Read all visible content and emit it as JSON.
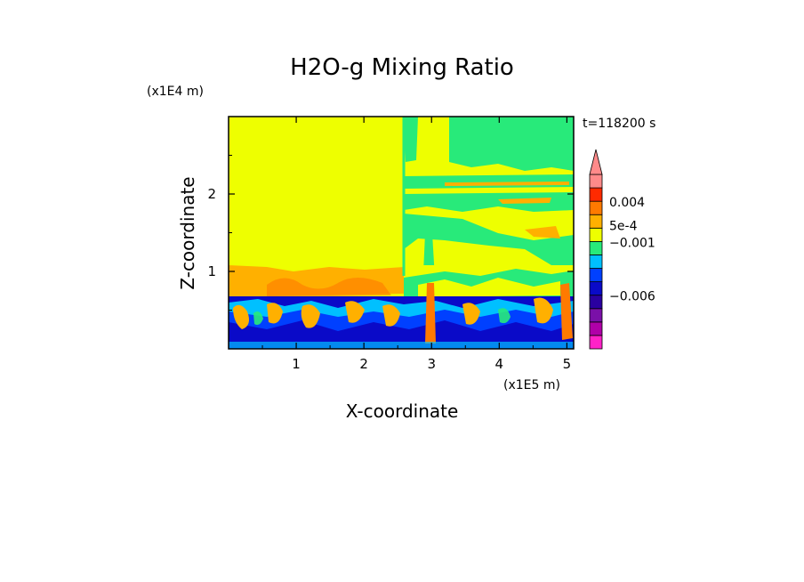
{
  "chart_data": {
    "type": "heatmap",
    "title": "H2O-g Mixing Ratio",
    "xlabel": "X-coordinate",
    "ylabel": "Z-coordinate",
    "x_unit": "(x1E5 m)",
    "y_unit": "(x1E4 m)",
    "time_label": "t=118200 s",
    "xlim": [
      0,
      5.1
    ],
    "ylim": [
      0,
      3.0
    ],
    "x_ticks": [
      "1",
      "2",
      "3",
      "4",
      "5"
    ],
    "y_ticks": [
      "1",
      "2"
    ],
    "colorbar": {
      "levels": [
        {
          "color": "#ff22c8"
        },
        {
          "color": "#b000a8"
        },
        {
          "color": "#7a10a8"
        },
        {
          "color": "#2a00a0"
        },
        {
          "color": "#0a0ac8"
        },
        {
          "color": "#0040ff"
        },
        {
          "color": "#00c0ff"
        },
        {
          "color": "#28ea7a"
        },
        {
          "color": "#eeff00"
        },
        {
          "color": "#ffb000"
        },
        {
          "color": "#ff7a00"
        },
        {
          "color": "#ff2a00"
        },
        {
          "color": "#ff8a8a"
        }
      ],
      "labels": [
        "0.004",
        "5e-4",
        "−0.001",
        "−0.006"
      ],
      "extend_top": true
    },
    "regions": [
      {
        "name": "upper-left",
        "value_band": "yellow",
        "x": [
          0,
          2.6
        ],
        "z": [
          1.0,
          3.0
        ]
      },
      {
        "name": "upper-right",
        "value_band": "green/yellow",
        "x": [
          2.6,
          5.1
        ],
        "z": [
          1.0,
          3.0
        ]
      },
      {
        "name": "mid-layer",
        "value_band": "yellow/orange",
        "x": [
          0,
          5.1
        ],
        "z": [
          0.7,
          1.0
        ]
      },
      {
        "name": "boundary-layer",
        "value_band": "blue/cyan/orange",
        "x": [
          0,
          5.1
        ],
        "z": [
          0,
          0.7
        ]
      }
    ]
  }
}
